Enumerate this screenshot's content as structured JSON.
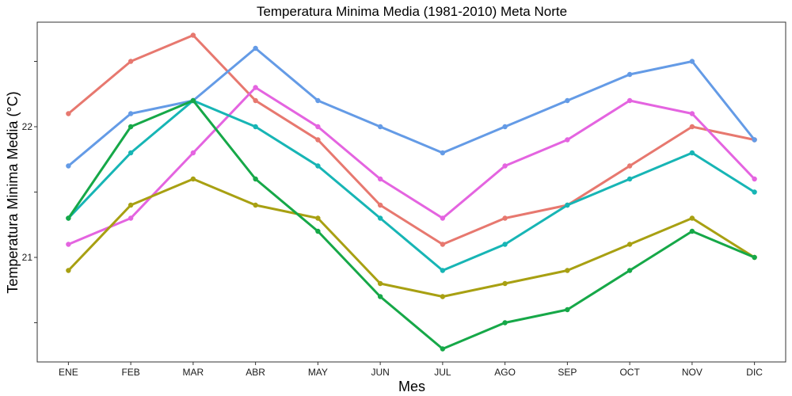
{
  "chart_data": {
    "type": "line",
    "title": "Temperatura Minima Media (1981-2010)  Meta Norte",
    "xlabel": "Mes",
    "ylabel": "Temperatura Minima Media  (°C)",
    "categories": [
      "ENE",
      "FEB",
      "MAR",
      "ABR",
      "MAY",
      "JUN",
      "JUL",
      "AGO",
      "SEP",
      "OCT",
      "NOV",
      "DIC"
    ],
    "ylim": [
      20.2,
      22.8
    ],
    "yticks": [
      21,
      22
    ],
    "grid": false,
    "legend": "none",
    "series": [
      {
        "color": "#E7786F",
        "values": [
          22.1,
          22.5,
          22.7,
          22.2,
          21.9,
          21.4,
          21.1,
          21.3,
          21.4,
          21.7,
          22.0,
          21.9
        ]
      },
      {
        "color": "#649BE6",
        "values": [
          21.7,
          22.1,
          22.2,
          22.6,
          22.2,
          22.0,
          21.8,
          22.0,
          22.2,
          22.4,
          22.5,
          21.9
        ]
      },
      {
        "color": "#E464E0",
        "values": [
          21.1,
          21.3,
          21.8,
          22.3,
          22.0,
          21.6,
          21.3,
          21.7,
          21.9,
          22.2,
          22.1,
          21.6
        ]
      },
      {
        "color": "#17B5B5",
        "values": [
          21.3,
          21.8,
          22.2,
          22.0,
          21.7,
          21.3,
          20.9,
          21.1,
          21.4,
          21.6,
          21.8,
          21.5
        ]
      },
      {
        "color": "#A8A012",
        "values": [
          20.9,
          21.4,
          21.6,
          21.4,
          21.3,
          20.8,
          20.7,
          20.8,
          20.9,
          21.1,
          21.3,
          21.0
        ]
      },
      {
        "color": "#16A848",
        "values": [
          21.3,
          22.0,
          22.2,
          21.6,
          21.2,
          20.7,
          20.3,
          20.5,
          20.6,
          20.9,
          21.2,
          21.0
        ]
      }
    ]
  }
}
